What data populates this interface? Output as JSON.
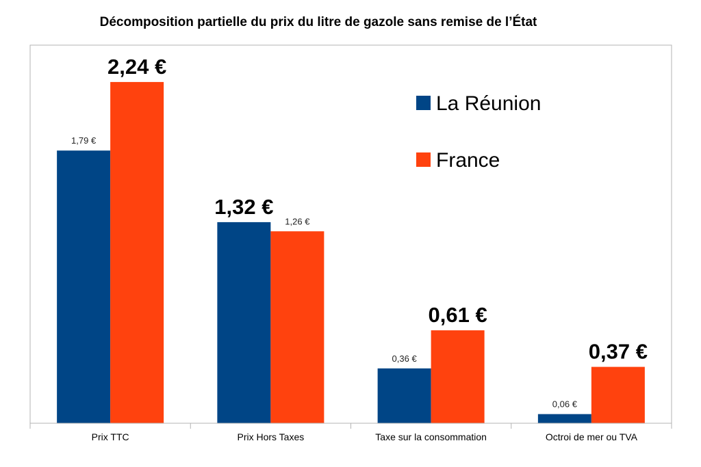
{
  "chart_data": {
    "type": "bar",
    "title": "Décomposition partielle du prix du litre de gazole sans remise de l’État",
    "categories": [
      "Prix TTC",
      "Prix Hors Taxes",
      "Taxe sur la consommation",
      "Octroi de mer ou TVA"
    ],
    "series": [
      {
        "name": "La Réunion",
        "color": "#004586",
        "values": [
          1.79,
          1.32,
          0.36,
          0.06
        ],
        "labels": [
          "1,79 €",
          "1,32 €",
          "0,36 €",
          "0,06 €"
        ],
        "emphasis": [
          false,
          true,
          false,
          false
        ]
      },
      {
        "name": "France",
        "color": "#ff420e",
        "values": [
          2.24,
          1.26,
          0.61,
          0.37
        ],
        "labels": [
          "2,24 €",
          "1,26 €",
          "0,61 €",
          "0,37 €"
        ],
        "emphasis": [
          true,
          false,
          true,
          true
        ]
      }
    ],
    "ylim": [
      0,
      2.5
    ],
    "xlabel": "",
    "ylabel": "",
    "grid": false,
    "legend_position": "top-right"
  }
}
